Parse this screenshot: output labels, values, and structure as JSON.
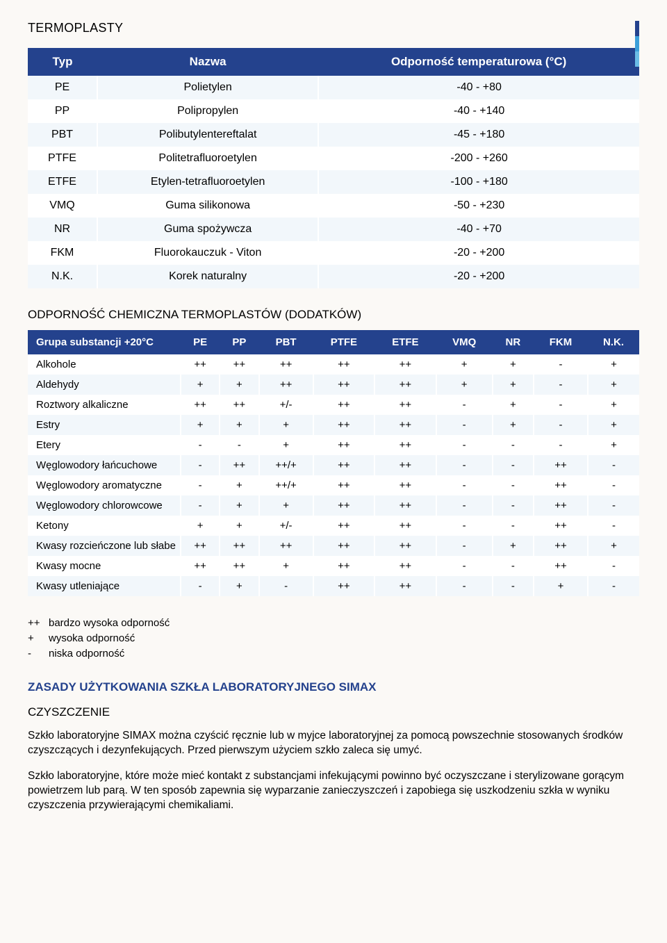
{
  "colors": {
    "page_bg": "#fbf9f6",
    "header_bg": "#24428d",
    "header_fg": "#ffffff",
    "row_alt": "#f2f7fb",
    "row_base": "#ffffff",
    "heading_blue": "#24428d",
    "text": "#000000",
    "strip": [
      "#24428d",
      "#3c9fd9",
      "#6bbde6"
    ]
  },
  "typography": {
    "font_family": "Arial",
    "body_fontsize": 15,
    "section_title_fontsize": 18,
    "table_header_fontsize": 17
  },
  "section1_title": "TERMOPLASTY",
  "table1": {
    "type": "table",
    "columns": [
      "Typ",
      "Nazwa",
      "Odporność temperaturowa (°C)"
    ],
    "col_align": [
      "center",
      "center",
      "center"
    ],
    "rows": [
      [
        "PE",
        "Polietylen",
        "-40 - +80"
      ],
      [
        "PP",
        "Polipropylen",
        "-40 - +140"
      ],
      [
        "PBT",
        "Polibutylentereftalat",
        "-45 - +180"
      ],
      [
        "PTFE",
        "Politetrafluoroetylen",
        "-200 - +260"
      ],
      [
        "ETFE",
        "Etylen-tetrafluoroetylen",
        "-100 - +180"
      ],
      [
        "VMQ",
        "Guma silikonowa",
        "-50 - +230"
      ],
      [
        "NR",
        "Guma spożywcza",
        "-40 - +70"
      ],
      [
        "FKM",
        "Fluorokauczuk - Viton",
        "-20 - +200"
      ],
      [
        "N.K.",
        "Korek naturalny",
        "-20 - +200"
      ]
    ]
  },
  "subsection_title": "ODPORNOŚĆ CHEMICZNA TERMOPLASTÓW (DODATKÓW)",
  "table2": {
    "type": "table",
    "columns": [
      "Grupa substancji +20°C",
      "PE",
      "PP",
      "PBT",
      "PTFE",
      "ETFE",
      "VMQ",
      "NR",
      "FKM",
      "N.K."
    ],
    "col_align": [
      "left",
      "center",
      "center",
      "center",
      "center",
      "center",
      "center",
      "center",
      "center",
      "center"
    ],
    "rows": [
      [
        "Alkohole",
        "++",
        "++",
        "++",
        "++",
        "++",
        "+",
        "+",
        "-",
        "+"
      ],
      [
        "Aldehydy",
        "+",
        "+",
        "++",
        "++",
        "++",
        "+",
        "+",
        "-",
        "+"
      ],
      [
        "Roztwory alkaliczne",
        "++",
        "++",
        "+/-",
        "++",
        "++",
        "-",
        "+",
        "-",
        "+"
      ],
      [
        "Estry",
        "+",
        "+",
        "+",
        "++",
        "++",
        "-",
        "+",
        "-",
        "+"
      ],
      [
        "Etery",
        "-",
        "-",
        "+",
        "++",
        "++",
        "-",
        "-",
        "-",
        "+"
      ],
      [
        "Węglowodory łańcuchowe",
        "-",
        "++",
        "++/+",
        "++",
        "++",
        "-",
        "-",
        "++",
        "-"
      ],
      [
        "Węglowodory aromatyczne",
        "-",
        "+",
        "++/+",
        "++",
        "++",
        "-",
        "-",
        "++",
        "-"
      ],
      [
        "Węglowodory chlorowcowe",
        "-",
        "+",
        "+",
        "++",
        "++",
        "-",
        "-",
        "++",
        "-"
      ],
      [
        "Ketony",
        "+",
        "+",
        "+/-",
        "++",
        "++",
        "-",
        "-",
        "++",
        "-"
      ],
      [
        "Kwasy rozcieńczone lub słabe",
        "++",
        "++",
        "++",
        "++",
        "++",
        "-",
        "+",
        "++",
        "+"
      ],
      [
        "Kwasy mocne",
        "++",
        "++",
        "+",
        "++",
        "++",
        "-",
        "-",
        "++",
        "-"
      ],
      [
        "Kwasy utleniające",
        "-",
        "+",
        "-",
        "++",
        "++",
        "-",
        "-",
        "+",
        "-"
      ]
    ]
  },
  "legend": [
    {
      "sym": "++",
      "text": "bardzo wysoka odporność"
    },
    {
      "sym": "+",
      "text": "wysoka odporność"
    },
    {
      "sym": "-",
      "text": "niska odporność"
    }
  ],
  "heading2": "ZASADY UŻYTKOWANIA SZKŁA LABORATORYJNEGO SIMAX",
  "sub_hd": "CZYSZCZENIE",
  "para1": "Szkło laboratoryjne SIMAX można czyścić ręcznie lub w myjce laboratoryjnej za pomocą powszechnie stosowanych środków czyszczących i dezynfekujących. Przed pierwszym użyciem szkło zaleca się umyć.",
  "para2": "Szkło laboratoryjne, które może mieć kontakt z substancjami infekującymi powinno być oczyszczane i sterylizowane gorącym powietrzem lub parą. W ten sposób zapewnia się wyparzanie zanieczyszczeń i zapobiega się uszkodzeniu szkła w wyniku czyszczenia przywierającymi chemikaliami."
}
